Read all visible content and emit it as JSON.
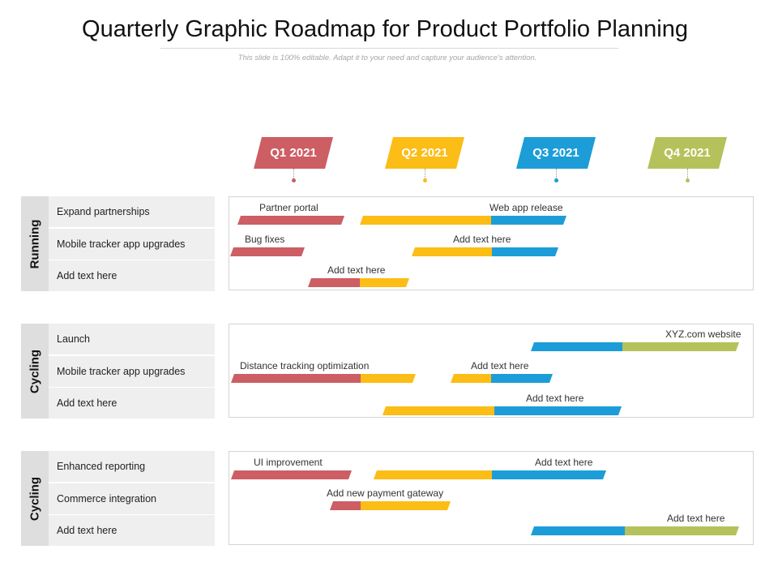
{
  "title": "Quarterly Graphic Roadmap for Product Portfolio Planning",
  "subtitle": "This slide is 100% editable. Adapt it to your need and capture your audience’s attention.",
  "colors": {
    "red": "#cd5e64",
    "yellow": "#fbbd16",
    "blue": "#1d9dd8",
    "green": "#b5c25b"
  },
  "quarters": [
    {
      "label": "Q1 2021",
      "color": "#cd5e64"
    },
    {
      "label": "Q2 2021",
      "color": "#fbbd16"
    },
    {
      "label": "Q3 2021",
      "color": "#1d9dd8"
    },
    {
      "label": "Q4 2021",
      "color": "#b5c25b"
    }
  ],
  "sections": [
    {
      "category": "Running",
      "tasks": [
        "Expand partnerships",
        "Mobile tracker app upgrades",
        "Add text here"
      ],
      "bar_labels": [
        "Partner portal",
        "Web app release",
        "Bug fixes",
        "Add text here",
        "Add text here"
      ]
    },
    {
      "category": "Cycling",
      "tasks": [
        "Launch",
        "Mobile tracker app upgrades",
        "Add text here"
      ],
      "bar_labels": [
        "XYZ.com  website",
        "Distance tracking optimization",
        "Add text here",
        "Add text here"
      ]
    },
    {
      "category": "Cycling",
      "tasks": [
        "Enhanced reporting",
        "Commerce  integration",
        "Add text here"
      ],
      "bar_labels": [
        "UI improvement",
        "Add text here",
        "Add new payment gateway",
        "Add text here"
      ]
    }
  ]
}
